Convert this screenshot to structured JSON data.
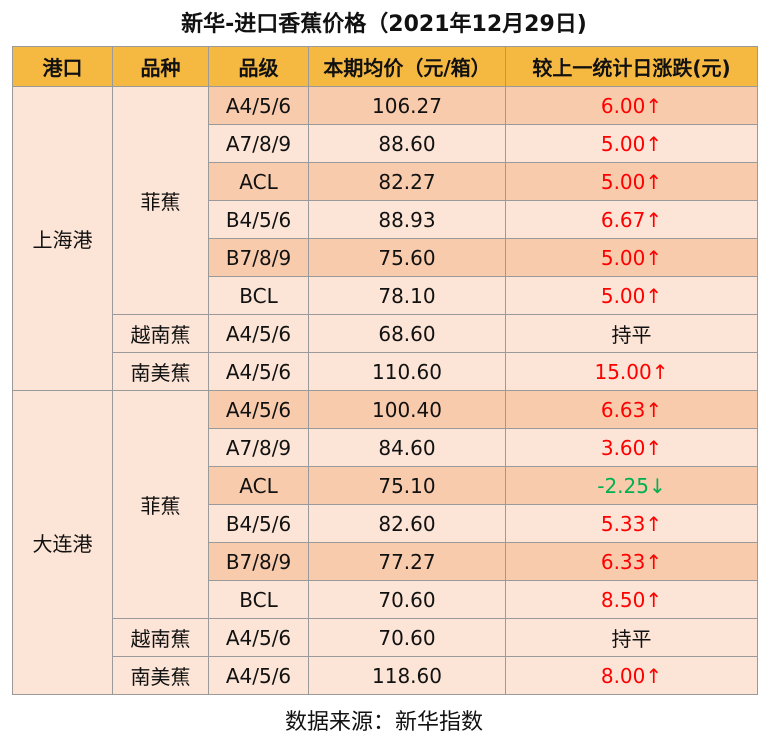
{
  "title": "新华-进口香蕉价格（2021年12月29日)",
  "header": [
    "港口",
    "品种",
    "品级",
    "本期均价（元/箱）",
    "较上一统计日涨跌(元)"
  ],
  "groups": [
    {
      "port": "上海港",
      "varieties": [
        {
          "name": "菲蕉",
          "rows": [
            {
              "grade": "A4/5/6",
              "price": "106.27",
              "change": "6.00↑",
              "color": "#ff0000"
            },
            {
              "grade": "A7/8/9",
              "price": "88.60",
              "change": "5.00↑",
              "color": "#ff0000"
            },
            {
              "grade": "ACL",
              "price": "82.27",
              "change": "5.00↑",
              "color": "#ff0000"
            },
            {
              "grade": "B4/5/6",
              "price": "88.93",
              "change": "6.67↑",
              "color": "#ff0000"
            },
            {
              "grade": "B7/8/9",
              "price": "75.60",
              "change": "5.00↑",
              "color": "#ff0000"
            },
            {
              "grade": "BCL",
              "price": "78.10",
              "change": "5.00↑",
              "color": "#ff0000"
            }
          ]
        },
        {
          "name": "越南蕉",
          "rows": [
            {
              "grade": "A4/5/6",
              "price": "68.60",
              "change": "持平",
              "color": "#111111"
            }
          ]
        },
        {
          "name": "南美蕉",
          "rows": [
            {
              "grade": "A4/5/6",
              "price": "110.60",
              "change": "15.00↑",
              "color": "#ff0000"
            }
          ]
        }
      ]
    },
    {
      "port": "大连港",
      "varieties": [
        {
          "name": "菲蕉",
          "rows": [
            {
              "grade": "A4/5/6",
              "price": "100.40",
              "change": "6.63↑",
              "color": "#ff0000"
            },
            {
              "grade": "A7/8/9",
              "price": "84.60",
              "change": "3.60↑",
              "color": "#ff0000"
            },
            {
              "grade": "ACL",
              "price": "75.10",
              "change": "-2.25↓",
              "color": "#00b050"
            },
            {
              "grade": "B4/5/6",
              "price": "82.60",
              "change": "5.33↑",
              "color": "#ff0000"
            },
            {
              "grade": "B7/8/9",
              "price": "77.27",
              "change": "6.33↑",
              "color": "#ff0000"
            },
            {
              "grade": "BCL",
              "price": "70.60",
              "change": "8.50↑",
              "color": "#ff0000"
            }
          ]
        },
        {
          "name": "越南蕉",
          "rows": [
            {
              "grade": "A4/5/6",
              "price": "70.60",
              "change": "持平",
              "color": "#111111"
            }
          ]
        },
        {
          "name": "南美蕉",
          "rows": [
            {
              "grade": "A4/5/6",
              "price": "118.60",
              "change": "8.00↑",
              "color": "#ff0000"
            }
          ]
        }
      ]
    }
  ],
  "source": "数据来源：新华指数"
}
